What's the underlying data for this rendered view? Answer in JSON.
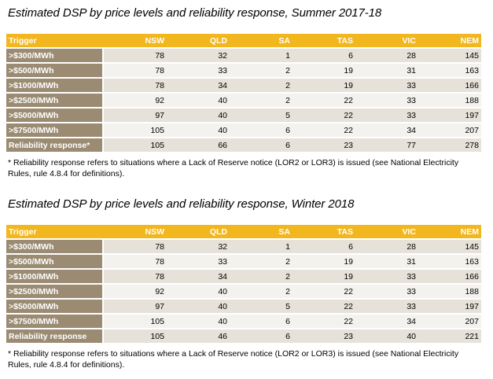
{
  "sections": [
    {
      "title": "Estimated DSP by price levels and reliability response, Summer 2017-18",
      "headers": [
        "Trigger",
        "NSW",
        "QLD",
        "SA",
        "TAS",
        "VIC",
        "NEM"
      ],
      "rows": [
        {
          "label": ">$300/MWh",
          "values": [
            "78",
            "32",
            "1",
            "6",
            "28",
            "145"
          ]
        },
        {
          "label": ">$500/MWh",
          "values": [
            "78",
            "33",
            "2",
            "19",
            "31",
            "163"
          ]
        },
        {
          "label": ">$1000/MWh",
          "values": [
            "78",
            "34",
            "2",
            "19",
            "33",
            "166"
          ]
        },
        {
          "label": ">$2500/MWh",
          "values": [
            "92",
            "40",
            "2",
            "22",
            "33",
            "188"
          ]
        },
        {
          "label": ">$5000/MWh",
          "values": [
            "97",
            "40",
            "5",
            "22",
            "33",
            "197"
          ]
        },
        {
          "label": ">$7500/MWh",
          "values": [
            "105",
            "40",
            "6",
            "22",
            "34",
            "207"
          ]
        },
        {
          "label": "Reliability response*",
          "values": [
            "105",
            "66",
            "6",
            "23",
            "77",
            "278"
          ]
        }
      ],
      "footnote": "* Reliability response refers to situations where a Lack of Reserve notice (LOR2 or LOR3) is issued (see National Electricity Rules, rule 4.8.4 for definitions)."
    },
    {
      "title": "Estimated DSP by price levels and reliability response, Winter 2018",
      "headers": [
        "Trigger",
        "NSW",
        "QLD",
        "SA",
        "TAS",
        "VIC",
        "NEM"
      ],
      "rows": [
        {
          "label": ">$300/MWh",
          "values": [
            "78",
            "32",
            "1",
            "6",
            "28",
            "145"
          ]
        },
        {
          "label": ">$500/MWh",
          "values": [
            "78",
            "33",
            "2",
            "19",
            "31",
            "163"
          ]
        },
        {
          "label": ">$1000/MWh",
          "values": [
            "78",
            "34",
            "2",
            "19",
            "33",
            "166"
          ]
        },
        {
          "label": ">$2500/MWh",
          "values": [
            "92",
            "40",
            "2",
            "22",
            "33",
            "188"
          ]
        },
        {
          "label": ">$5000/MWh",
          "values": [
            "97",
            "40",
            "5",
            "22",
            "33",
            "197"
          ]
        },
        {
          "label": ">$7500/MWh",
          "values": [
            "105",
            "40",
            "6",
            "22",
            "34",
            "207"
          ]
        },
        {
          "label": "Reliability response",
          "values": [
            "105",
            "46",
            "6",
            "23",
            "40",
            "221"
          ]
        }
      ],
      "footnote": "* Reliability response refers to situations where a Lack of Reserve notice (LOR2 or LOR3) is issued (see National Electricity Rules, rule 4.8.4 for definitions)."
    }
  ]
}
